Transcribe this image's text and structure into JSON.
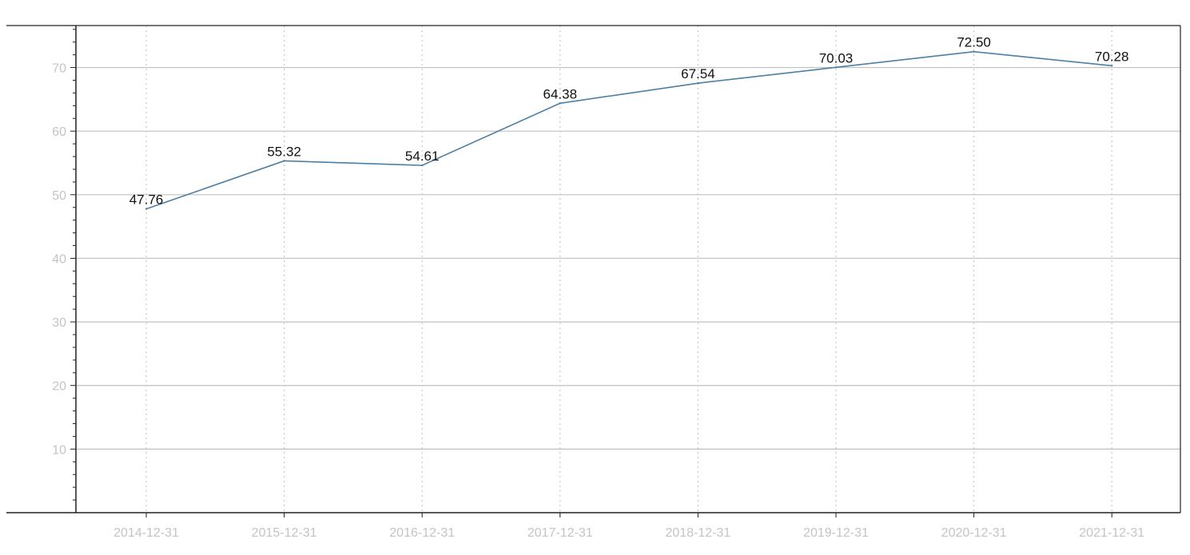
{
  "chart_data": {
    "type": "line",
    "title": "",
    "xlabel": "",
    "ylabel": "",
    "x": [
      "2014-12-31",
      "2015-12-31",
      "2016-12-31",
      "2017-12-31",
      "2018-12-31",
      "2019-12-31",
      "2020-12-31",
      "2021-12-31"
    ],
    "series": [
      {
        "values": [
          47.76,
          55.32,
          54.61,
          64.38,
          67.54,
          70.03,
          72.5,
          70.28
        ],
        "data_labels": [
          "47.76",
          "55.32",
          "54.61",
          "64.38",
          "67.54",
          "70.03",
          "72.50",
          "70.28"
        ],
        "color": "#4a7fa7"
      }
    ],
    "y_ticks": [
      10,
      20,
      30,
      40,
      50,
      60,
      70
    ],
    "ylim": [
      0,
      76.6
    ],
    "grid": {
      "horizontal": true,
      "vertical": "dotted",
      "horizontal_color": "#c0c0c0",
      "vertical_color": "#c8c8c8"
    },
    "tick_label_color": "#c4c4c4",
    "data_label_color": "#111111",
    "axis_color": "#222222",
    "legend": "none"
  }
}
